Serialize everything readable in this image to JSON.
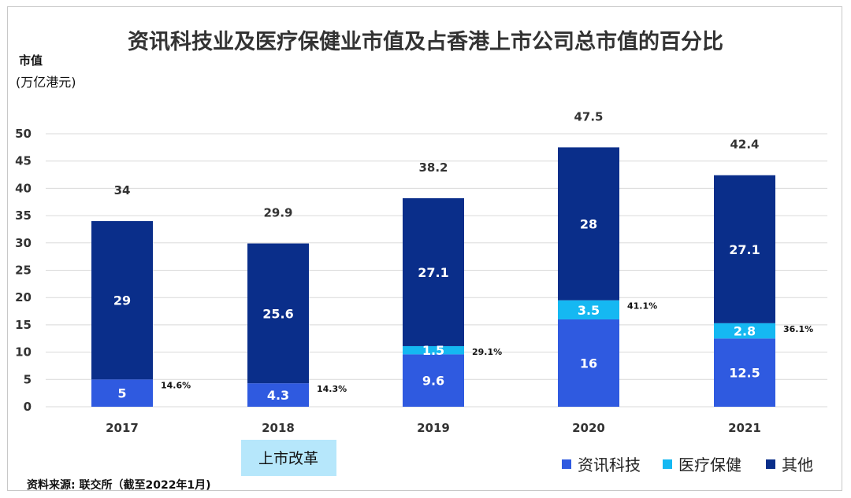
{
  "chart_data": {
    "type": "bar",
    "stacked": true,
    "title": "资讯科技业及医疗保健业市值及占香港上市公司总市值的百分比",
    "ylabel_line1": "市值",
    "ylabel_line2": "(万亿港元)",
    "ylim": [
      0,
      50
    ],
    "yticks": [
      0,
      5,
      10,
      15,
      20,
      25,
      30,
      35,
      40,
      45,
      50
    ],
    "grid": true,
    "categories": [
      "2017",
      "2018",
      "2019",
      "2020",
      "2021"
    ],
    "series": [
      {
        "name": "资讯科技",
        "color": "#2f5ae0",
        "values": [
          5,
          4.3,
          9.6,
          16,
          12.5
        ],
        "labels": [
          "5",
          "4.3",
          "9.6",
          "16",
          "12.5"
        ]
      },
      {
        "name": "医疗保健",
        "color": "#15b8f2",
        "values": [
          0,
          0,
          1.5,
          3.5,
          2.8
        ],
        "labels": [
          "",
          "",
          "1.5",
          "3.5",
          "2.8"
        ]
      },
      {
        "name": "其他",
        "color": "#0a2e8a",
        "values": [
          29,
          25.6,
          27.1,
          28,
          27.1
        ],
        "labels": [
          "29",
          "25.6",
          "27.1",
          "28",
          "27.1"
        ]
      }
    ],
    "totals": [
      "34",
      "29.9",
      "38.2",
      "47.5",
      "42.4"
    ],
    "percentages": [
      "14.6%",
      "14.3%",
      "29.1%",
      "41.1%",
      "36.1%"
    ],
    "legend_position": "bottom-right",
    "annotation": {
      "text": "上市改革",
      "category": "2018",
      "bg_color": "#b6e7fb"
    },
    "source": "资料来源: 联交所（截至2022年1月)"
  }
}
